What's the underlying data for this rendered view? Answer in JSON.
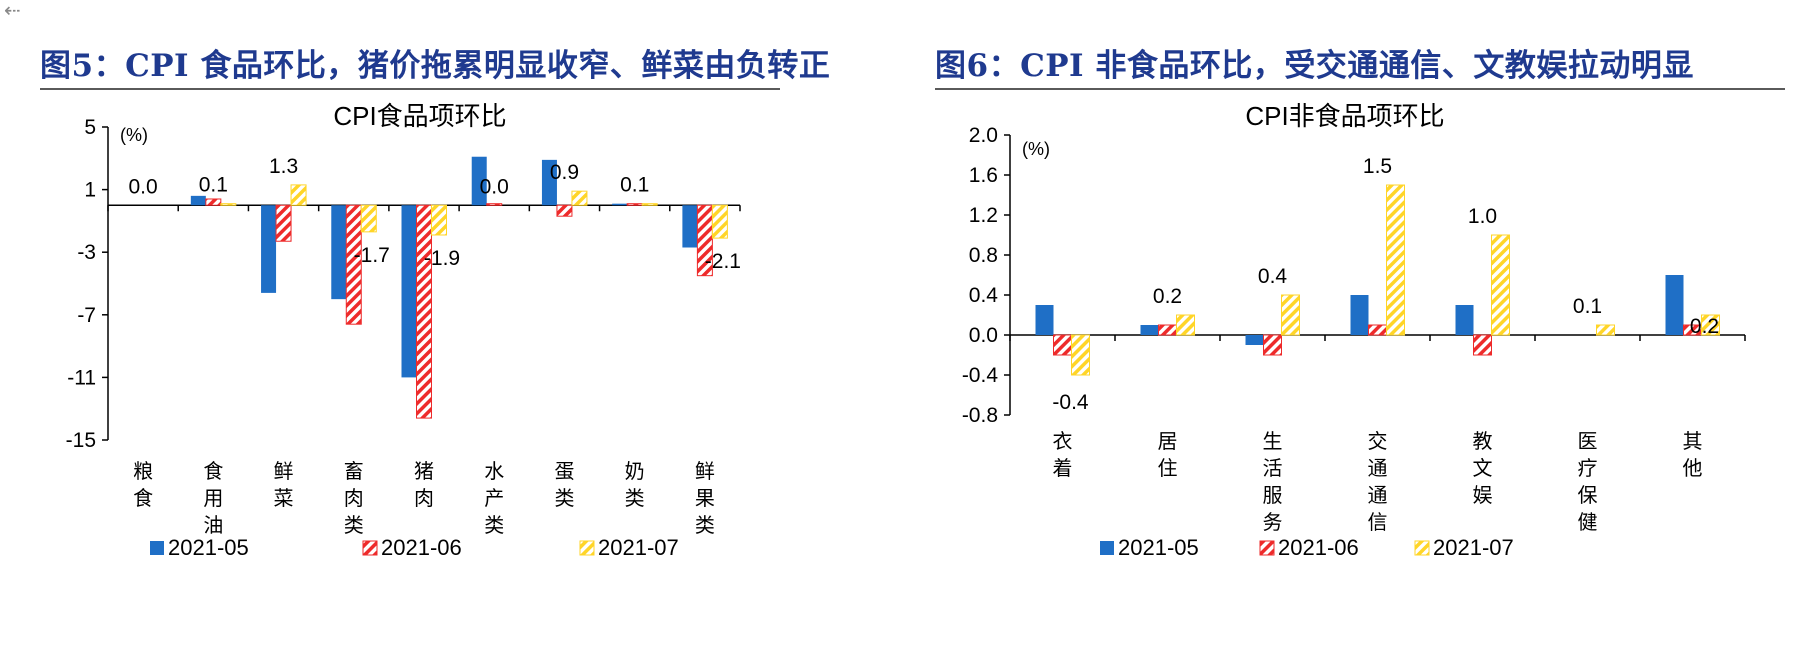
{
  "left": {
    "figure_title": "图5：CPI 食品环比，猪价拖累明显收窄、鲜菜由负转正"
  },
  "right": {
    "figure_title": "图6：CPI 非食品环比，受交通通信、文教娱拉动明显"
  },
  "colors": {
    "s1": "#1f6fc6",
    "s2": "#ee2b2b",
    "s3": "#ffd528",
    "title": "#1f3a8f"
  },
  "chart_data": [
    {
      "type": "bar",
      "title": "CPI食品项环比",
      "unit_label": "(%)",
      "ylim": [
        -15,
        5
      ],
      "yticks": [
        "5",
        "1",
        "-3",
        "-7",
        "-11",
        "-15"
      ],
      "ytick_values": [
        5,
        1,
        -3,
        -7,
        -11,
        -15
      ],
      "categories": [
        "粮食",
        "食用油",
        "鲜菜",
        "畜肉类",
        "猪肉",
        "水产类",
        "蛋类",
        "奶类",
        "鲜果类"
      ],
      "series": [
        {
          "name": "2021-05",
          "values": [
            0.0,
            0.6,
            -5.6,
            -6.0,
            -11.0,
            3.1,
            2.9,
            0.1,
            -2.7
          ],
          "pattern": "solid"
        },
        {
          "name": "2021-06",
          "values": [
            0.0,
            0.4,
            -2.3,
            -7.6,
            -13.6,
            0.1,
            -0.7,
            0.1,
            -4.5
          ],
          "pattern": "hatch"
        },
        {
          "name": "2021-07",
          "values": [
            0.0,
            0.1,
            1.3,
            -1.7,
            -1.9,
            0.0,
            0.9,
            0.1,
            -2.1
          ],
          "pattern": "hatch"
        }
      ],
      "data_labels": [
        {
          "text": "0.0",
          "category": 0
        },
        {
          "text": "0.1",
          "category": 1
        },
        {
          "text": "1.3",
          "category": 2
        },
        {
          "text": "-1.7",
          "category": 3
        },
        {
          "text": "-1.9",
          "category": 4
        },
        {
          "text": "0.0",
          "category": 5
        },
        {
          "text": "0.9",
          "category": 6
        },
        {
          "text": "0.1",
          "category": 7
        },
        {
          "text": "-2.1",
          "category": 8
        }
      ],
      "legend_position": "bottom"
    },
    {
      "type": "bar",
      "title": "CPI非食品项环比",
      "unit_label": "(%)",
      "ylim": [
        -0.8,
        2.0
      ],
      "yticks": [
        "2.0",
        "1.6",
        "1.2",
        "0.8",
        "0.4",
        "0.0",
        "-0.4",
        "-0.8"
      ],
      "ytick_values": [
        2.0,
        1.6,
        1.2,
        0.8,
        0.4,
        0.0,
        -0.4,
        -0.8
      ],
      "categories": [
        "衣着",
        "居住",
        "生活服务",
        "交通通信",
        "教文娱",
        "医疗保健",
        "其他"
      ],
      "series": [
        {
          "name": "2021-05",
          "values": [
            0.3,
            0.1,
            -0.1,
            0.4,
            0.3,
            0.0,
            0.6
          ],
          "pattern": "solid"
        },
        {
          "name": "2021-06",
          "values": [
            -0.2,
            0.1,
            -0.2,
            0.1,
            -0.2,
            0.0,
            0.1
          ],
          "pattern": "hatch"
        },
        {
          "name": "2021-07",
          "values": [
            -0.4,
            0.2,
            0.4,
            1.5,
            1.0,
            0.1,
            0.2
          ],
          "pattern": "hatch"
        }
      ],
      "data_labels": [
        {
          "text": "-0.4",
          "category": 0
        },
        {
          "text": "0.2",
          "category": 1
        },
        {
          "text": "0.4",
          "category": 2
        },
        {
          "text": "1.5",
          "category": 3
        },
        {
          "text": "1.0",
          "category": 4
        },
        {
          "text": "0.1",
          "category": 5
        },
        {
          "text": "0.2",
          "category": 6
        }
      ],
      "legend_position": "bottom"
    }
  ]
}
